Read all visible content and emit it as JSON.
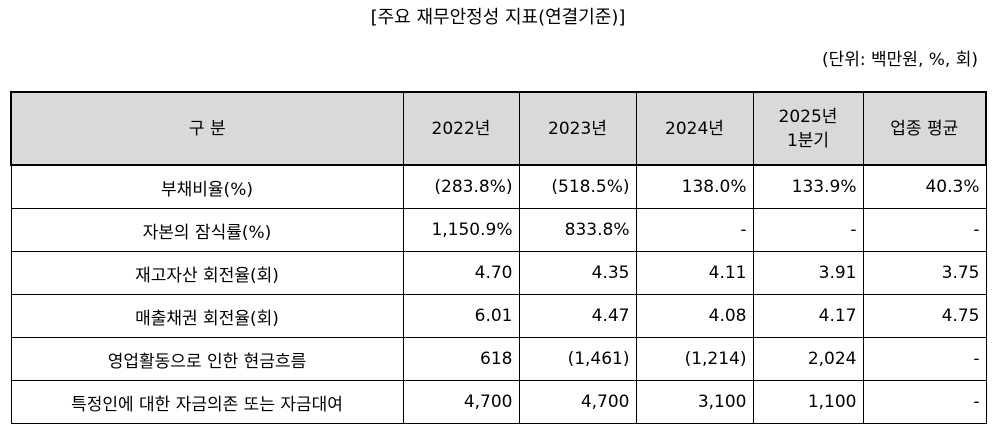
{
  "title": "[주요 재무안정성 지표(연결기준)]",
  "unit": "(단위: 백만원, %, 회)",
  "table": {
    "headers": [
      {
        "line1": "구 분",
        "line2": ""
      },
      {
        "line1": "2022년",
        "line2": ""
      },
      {
        "line1": "2023년",
        "line2": ""
      },
      {
        "line1": "2024년",
        "line2": ""
      },
      {
        "line1": "2025년",
        "line2": "1분기"
      },
      {
        "line1": "업종 평균",
        "line2": ""
      }
    ],
    "rows": [
      {
        "label": "부채비율(%)",
        "values": [
          "(283.8%)",
          "(518.5%)",
          "138.0%",
          "133.9%",
          "40.3%"
        ]
      },
      {
        "label": "자본의 잠식률(%)",
        "values": [
          "1,150.9%",
          "833.8%",
          "-",
          "-",
          "-"
        ]
      },
      {
        "label": "재고자산 회전율(회)",
        "values": [
          "4.70",
          "4.35",
          "4.11",
          "3.91",
          "3.75"
        ]
      },
      {
        "label": "매출채권 회전율(회)",
        "values": [
          "6.01",
          "4.47",
          "4.08",
          "4.17",
          "4.75"
        ]
      },
      {
        "label": "영업활동으로 인한 현금흐름",
        "values": [
          "618",
          "(1,461)",
          "(1,214)",
          "2,024",
          "-"
        ]
      },
      {
        "label": "특정인에 대한 자금의존 또는 자금대여",
        "values": [
          "4,700",
          "4,700",
          "3,100",
          "1,100",
          "-"
        ]
      }
    ]
  }
}
